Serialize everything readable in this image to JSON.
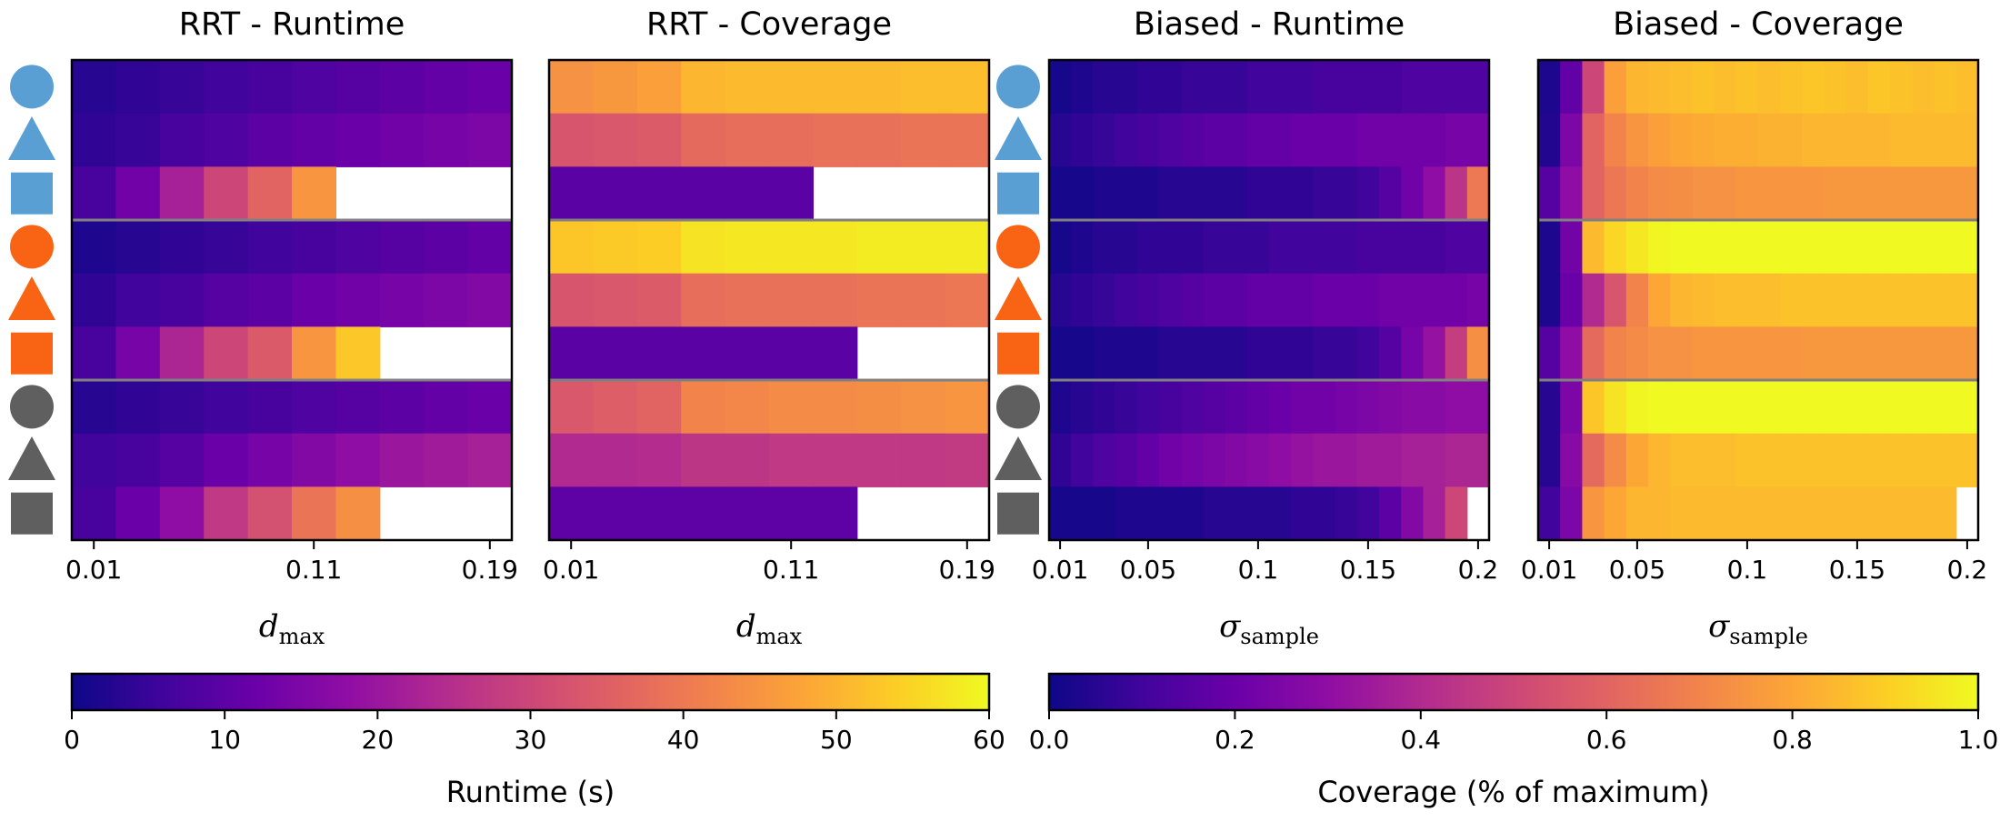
{
  "chart_data": {
    "type": "heatmap",
    "colormap": "plasma",
    "rows": [
      "circle-blue",
      "triangle-blue",
      "square-blue",
      "circle-orange",
      "triangle-orange",
      "square-orange",
      "circle-gray",
      "triangle-gray",
      "square-gray"
    ],
    "row_colors": {
      "blue": "#5a9fd4",
      "orange": "#f86414",
      "gray": "#5f5f5f"
    },
    "separator_color": "#808080",
    "missing_color": "#ffffff",
    "panels": [
      {
        "title": "RRT - Runtime",
        "xlabel": {
          "base": "d",
          "sub": "max"
        },
        "xticks": [
          {
            "label": "0.01",
            "value": 0.01
          },
          {
            "label": "0.11",
            "value": 0.11
          },
          {
            "label": "0.19",
            "value": 0.19
          }
        ],
        "x": [
          0.01,
          0.03,
          0.05,
          0.07,
          0.09,
          0.11,
          0.13,
          0.15,
          0.17,
          0.19
        ],
        "scale": "runtime",
        "values": [
          [
            3,
            4,
            5,
            6,
            7,
            8,
            9,
            10,
            11,
            12
          ],
          [
            4,
            5,
            7,
            8,
            10,
            11,
            12,
            13,
            14,
            15
          ],
          [
            7,
            13,
            22,
            30,
            36,
            45,
            null,
            null,
            null,
            null
          ],
          [
            2,
            3,
            4,
            5,
            6,
            7,
            8,
            9,
            10,
            11
          ],
          [
            4,
            6,
            7,
            9,
            10,
            12,
            13,
            14,
            15,
            16
          ],
          [
            7,
            14,
            23,
            30,
            34,
            45,
            53,
            null,
            null,
            null
          ],
          [
            3,
            4,
            5,
            6,
            7,
            8,
            9,
            10,
            11,
            12
          ],
          [
            6,
            7,
            9,
            12,
            14,
            16,
            18,
            20,
            21,
            22
          ],
          [
            7,
            12,
            18,
            27,
            32,
            39,
            44,
            null,
            null,
            null
          ]
        ]
      },
      {
        "title": "RRT - Coverage",
        "xlabel": {
          "base": "d",
          "sub": "max"
        },
        "xticks": [
          {
            "label": "0.01",
            "value": 0.01
          },
          {
            "label": "0.11",
            "value": 0.11
          },
          {
            "label": "0.19",
            "value": 0.19
          }
        ],
        "x": [
          0.01,
          0.03,
          0.05,
          0.07,
          0.09,
          0.11,
          0.13,
          0.15,
          0.17,
          0.19
        ],
        "scale": "coverage",
        "values": [
          [
            0.74,
            0.76,
            0.78,
            0.84,
            0.85,
            0.85,
            0.85,
            0.85,
            0.86,
            0.86
          ],
          [
            0.55,
            0.56,
            0.57,
            0.62,
            0.63,
            0.63,
            0.64,
            0.64,
            0.65,
            0.65
          ],
          [
            0.16,
            0.16,
            0.16,
            0.16,
            0.16,
            0.16,
            null,
            null,
            null,
            null
          ],
          [
            0.88,
            0.89,
            0.9,
            0.95,
            0.96,
            0.96,
            0.96,
            0.97,
            0.97,
            0.97
          ],
          [
            0.55,
            0.56,
            0.57,
            0.63,
            0.64,
            0.64,
            0.64,
            0.65,
            0.65,
            0.66
          ],
          [
            0.16,
            0.16,
            0.16,
            0.16,
            0.16,
            0.16,
            0.16,
            null,
            null,
            null
          ],
          [
            0.56,
            0.58,
            0.6,
            0.7,
            0.71,
            0.72,
            0.72,
            0.73,
            0.74,
            0.75
          ],
          [
            0.4,
            0.4,
            0.41,
            0.44,
            0.44,
            0.45,
            0.45,
            0.45,
            0.45,
            0.46
          ],
          [
            0.17,
            0.17,
            0.17,
            0.17,
            0.17,
            0.17,
            0.17,
            null,
            null,
            null
          ]
        ]
      },
      {
        "title": "Biased - Runtime",
        "xlabel": {
          "base": "σ",
          "sub": "sample"
        },
        "xticks": [
          {
            "label": "0.01",
            "value": 0.01
          },
          {
            "label": "0.05",
            "value": 0.05
          },
          {
            "label": "0.1",
            "value": 0.1
          },
          {
            "label": "0.15",
            "value": 0.15
          },
          {
            "label": "0.2",
            "value": 0.2
          }
        ],
        "x": [
          0.01,
          0.02,
          0.03,
          0.04,
          0.05,
          0.06,
          0.07,
          0.08,
          0.09,
          0.1,
          0.11,
          0.12,
          0.13,
          0.14,
          0.15,
          0.16,
          0.17,
          0.18,
          0.19,
          0.2
        ],
        "scale": "runtime",
        "values": [
          [
            1,
            2,
            3,
            3,
            4,
            4,
            5,
            5,
            5,
            6,
            6,
            6,
            7,
            7,
            7,
            7,
            8,
            8,
            8,
            8
          ],
          [
            3,
            4,
            5,
            6,
            7,
            8,
            9,
            10,
            10,
            11,
            11,
            12,
            12,
            12,
            13,
            13,
            13,
            13,
            14,
            14
          ],
          [
            1,
            1,
            2,
            2,
            2,
            3,
            3,
            3,
            3,
            4,
            4,
            4,
            5,
            5,
            6,
            9,
            13,
            18,
            26,
            40
          ],
          [
            1,
            2,
            3,
            3,
            4,
            4,
            4,
            5,
            5,
            5,
            6,
            6,
            6,
            6,
            7,
            7,
            7,
            7,
            8,
            8
          ],
          [
            3,
            4,
            5,
            6,
            7,
            8,
            9,
            10,
            10,
            11,
            11,
            11,
            12,
            12,
            12,
            13,
            13,
            13,
            13,
            14
          ],
          [
            1,
            1,
            2,
            2,
            2,
            3,
            3,
            3,
            3,
            4,
            4,
            4,
            5,
            5,
            6,
            9,
            14,
            19,
            28,
            44
          ],
          [
            2,
            3,
            4,
            5,
            6,
            7,
            8,
            9,
            10,
            11,
            12,
            13,
            13,
            14,
            15,
            16,
            17,
            17,
            18,
            18
          ],
          [
            4,
            6,
            8,
            9,
            11,
            13,
            14,
            15,
            16,
            17,
            18,
            19,
            20,
            20,
            21,
            21,
            22,
            22,
            23,
            23
          ],
          [
            1,
            1,
            1,
            2,
            2,
            2,
            2,
            3,
            3,
            3,
            3,
            4,
            4,
            5,
            6,
            10,
            16,
            22,
            30,
            null
          ]
        ]
      },
      {
        "title": "Biased - Coverage",
        "xlabel": {
          "base": "σ",
          "sub": "sample"
        },
        "xticks": [
          {
            "label": "0.01",
            "value": 0.01
          },
          {
            "label": "0.05",
            "value": 0.05
          },
          {
            "label": "0.1",
            "value": 0.1
          },
          {
            "label": "0.15",
            "value": 0.15
          },
          {
            "label": "0.2",
            "value": 0.2
          }
        ],
        "x": [
          0.01,
          0.02,
          0.03,
          0.04,
          0.05,
          0.06,
          0.07,
          0.08,
          0.09,
          0.1,
          0.11,
          0.12,
          0.13,
          0.14,
          0.15,
          0.16,
          0.17,
          0.18,
          0.19,
          0.2
        ],
        "scale": "coverage",
        "values": [
          [
            0.03,
            0.18,
            0.5,
            0.78,
            0.84,
            0.85,
            0.86,
            0.87,
            0.86,
            0.87,
            0.86,
            0.87,
            0.88,
            0.87,
            0.86,
            0.88,
            0.87,
            0.86,
            0.87,
            0.86
          ],
          [
            0.04,
            0.25,
            0.6,
            0.7,
            0.75,
            0.78,
            0.8,
            0.81,
            0.82,
            0.82,
            0.83,
            0.83,
            0.84,
            0.84,
            0.84,
            0.84,
            0.85,
            0.85,
            0.85,
            0.85
          ],
          [
            0.15,
            0.3,
            0.6,
            0.66,
            0.7,
            0.72,
            0.73,
            0.74,
            0.74,
            0.75,
            0.75,
            0.75,
            0.75,
            0.76,
            0.76,
            0.76,
            0.76,
            0.76,
            0.76,
            0.76
          ],
          [
            0.03,
            0.22,
            0.85,
            0.92,
            0.96,
            0.99,
            1.0,
            1.0,
            1.0,
            1.0,
            1.0,
            1.0,
            1.0,
            1.0,
            1.0,
            1.0,
            1.0,
            1.0,
            1.0,
            1.0
          ],
          [
            0.03,
            0.2,
            0.4,
            0.55,
            0.7,
            0.8,
            0.84,
            0.85,
            0.86,
            0.86,
            0.86,
            0.87,
            0.87,
            0.87,
            0.87,
            0.87,
            0.87,
            0.87,
            0.87,
            0.87
          ],
          [
            0.15,
            0.3,
            0.62,
            0.7,
            0.72,
            0.74,
            0.74,
            0.75,
            0.75,
            0.75,
            0.75,
            0.75,
            0.76,
            0.76,
            0.76,
            0.76,
            0.76,
            0.76,
            0.76,
            0.76
          ],
          [
            0.05,
            0.25,
            0.88,
            0.95,
            0.99,
            1.0,
            1.0,
            1.0,
            1.0,
            1.0,
            1.0,
            1.0,
            1.0,
            1.0,
            1.0,
            1.0,
            1.0,
            1.0,
            1.0,
            1.0
          ],
          [
            0.05,
            0.28,
            0.62,
            0.72,
            0.8,
            0.84,
            0.86,
            0.86,
            0.86,
            0.87,
            0.87,
            0.87,
            0.87,
            0.87,
            0.87,
            0.87,
            0.87,
            0.87,
            0.87,
            0.87
          ],
          [
            0.1,
            0.25,
            0.75,
            0.8,
            0.84,
            0.84,
            0.85,
            0.85,
            0.85,
            0.85,
            0.85,
            0.85,
            0.85,
            0.85,
            0.85,
            0.85,
            0.85,
            0.85,
            0.85,
            null
          ]
        ]
      }
    ],
    "colorbars": [
      {
        "label": "Runtime (s)",
        "range": [
          0,
          60
        ],
        "ticks": [
          "0",
          "10",
          "20",
          "30",
          "40",
          "50",
          "60"
        ]
      },
      {
        "label": "Coverage (% of maximum)",
        "range": [
          0,
          1
        ],
        "ticks": [
          "0.0",
          "0.2",
          "0.4",
          "0.6",
          "0.8",
          "1.0"
        ]
      }
    ]
  }
}
